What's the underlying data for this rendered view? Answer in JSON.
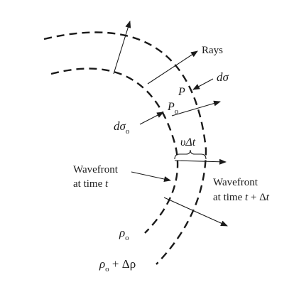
{
  "labels": {
    "rays": "Rays",
    "d_sigma": "dσ",
    "point_p": "P",
    "point_p0_main": "P",
    "point_p0_sub": "o",
    "d_sigma0_main": "dσ",
    "d_sigma0_sub": "o",
    "v_delta_t": "υΔt",
    "wavefront_t_line1": "Wavefront",
    "wavefront_t_line2_prefix": "at time ",
    "wavefront_t_line2_var": "t",
    "wavefront_tdt_line1": "Wavefront",
    "wavefront_tdt_line2_prefix": "at time ",
    "wavefront_tdt_line2_var": "t",
    "wavefront_tdt_line2_suffix": " + Δ",
    "wavefront_tdt_line2_var2": "t",
    "rho0_main": "ρ",
    "rho0_sub": "o",
    "rho_dr_main": "ρ",
    "rho_dr_sub": "o",
    "rho_dr_suffix": " + Δρ"
  }
}
